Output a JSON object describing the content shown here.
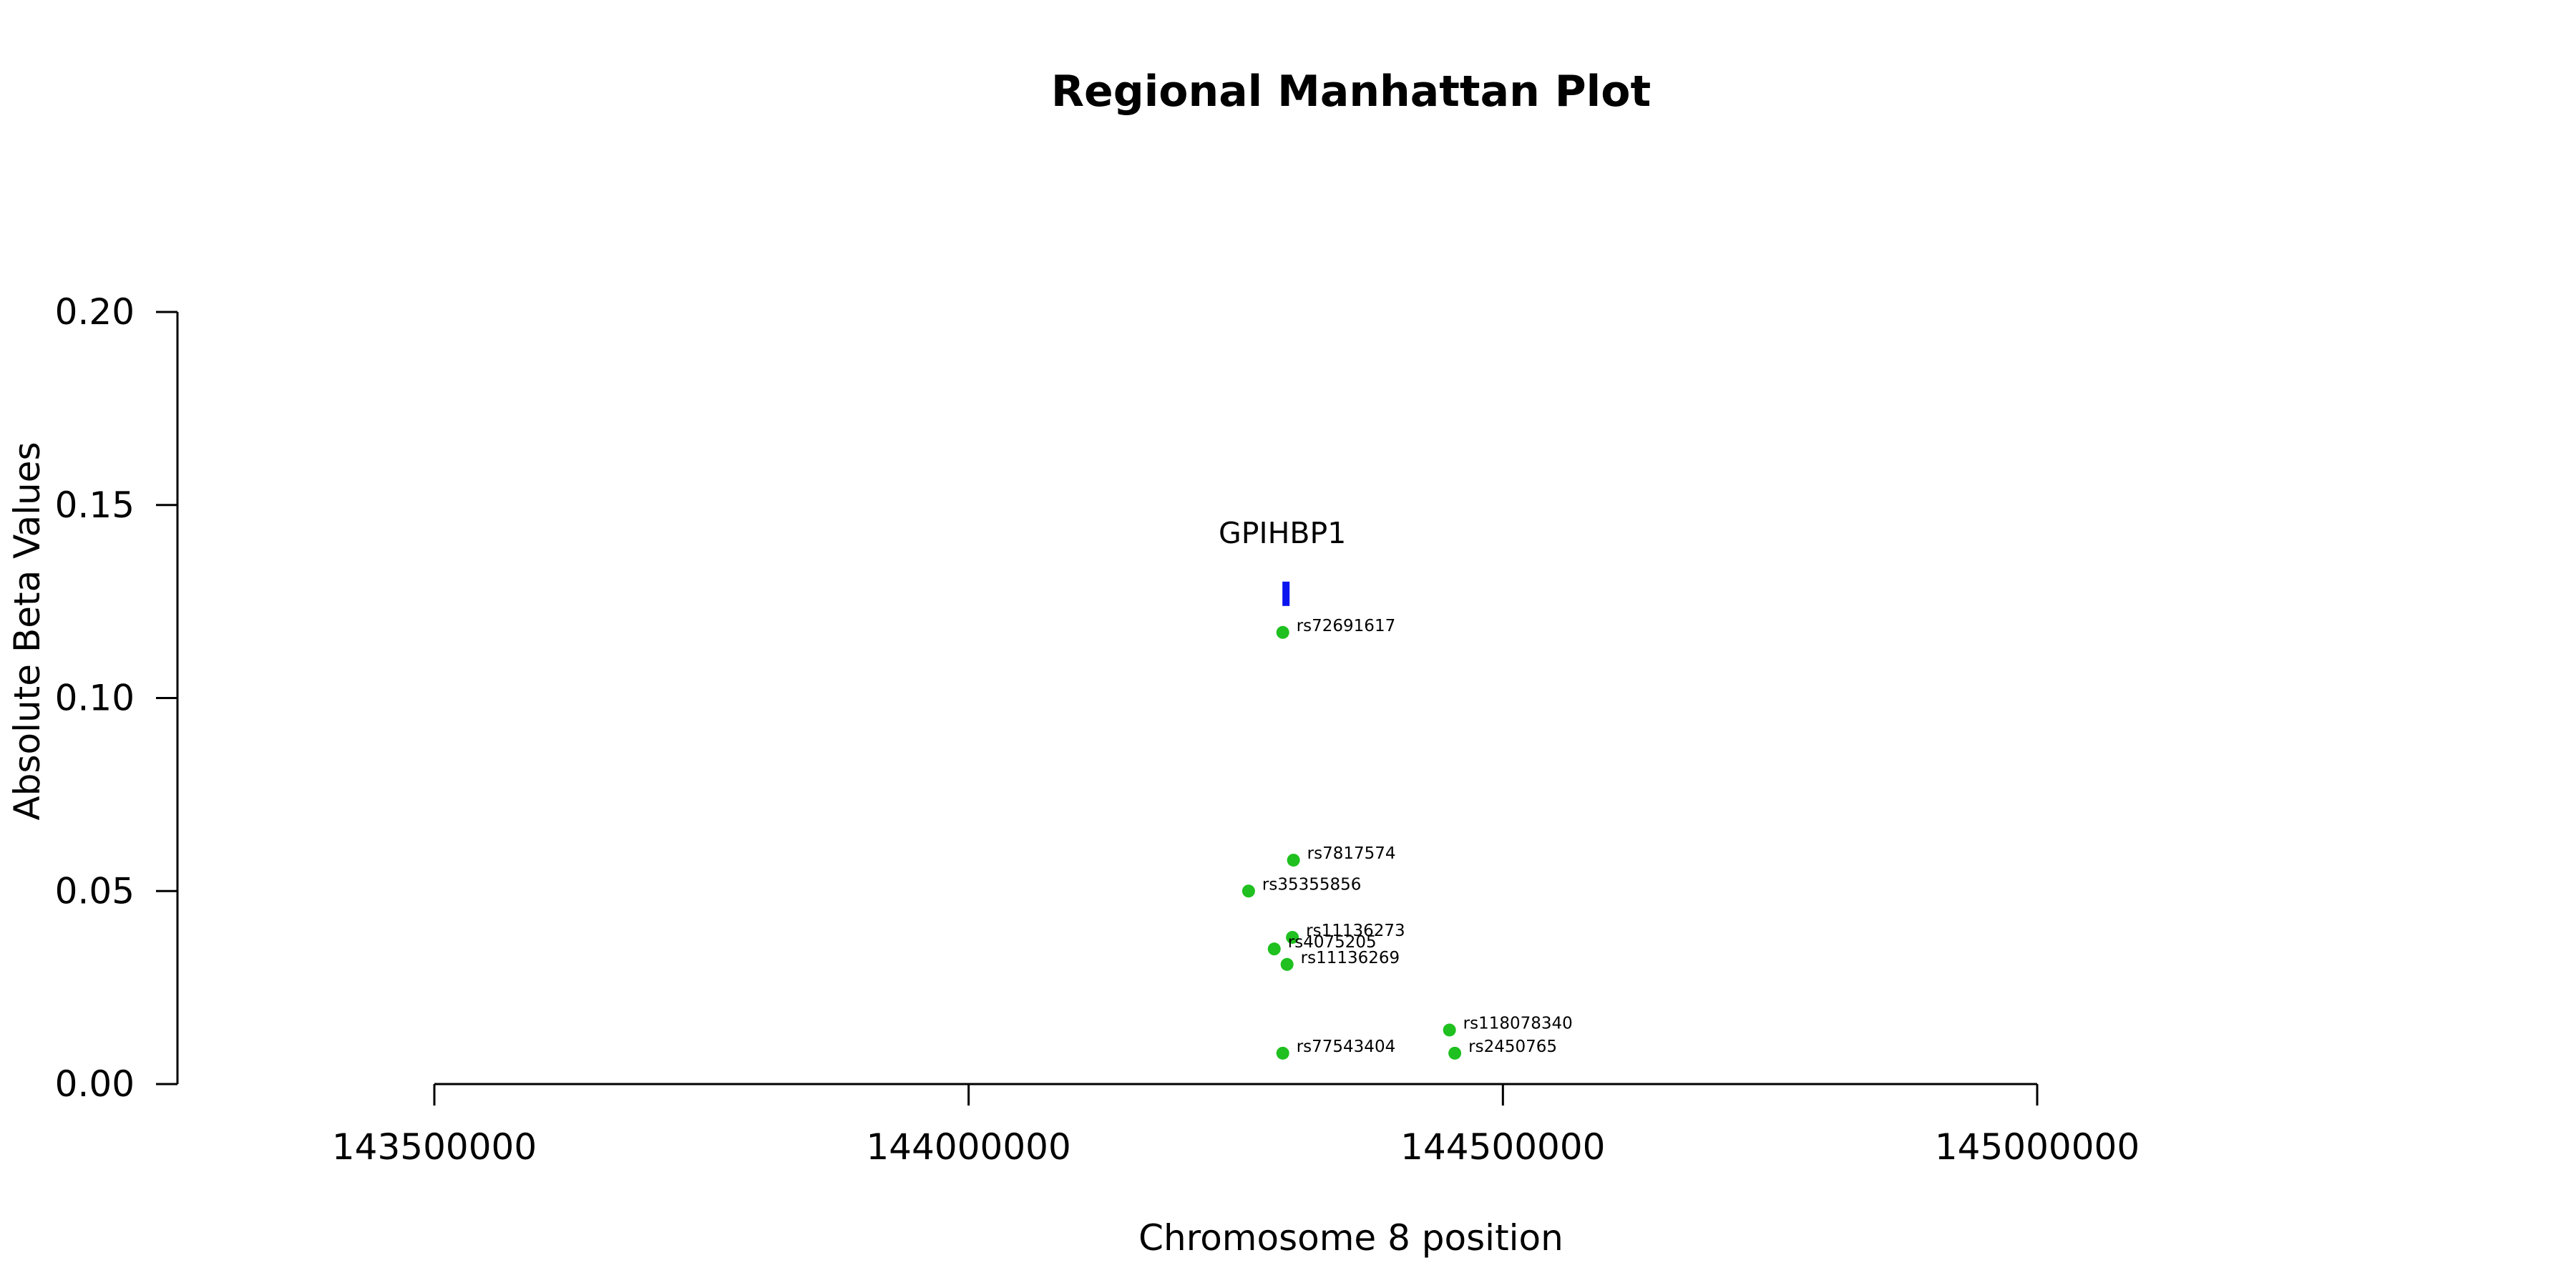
{
  "chart_data": {
    "type": "scatter",
    "title": "Regional Manhattan Plot",
    "xlabel": "Chromosome 8 position",
    "ylabel": "Absolute Beta Values",
    "xlim": [
      143500000,
      145000000
    ],
    "ylim": [
      0,
      0.2
    ],
    "x_ticks": [
      143500000,
      144000000,
      144500000,
      145000000
    ],
    "x_tick_labels": [
      "143500000",
      "144000000",
      "144500000",
      "145000000"
    ],
    "y_ticks": [
      0,
      0.05,
      0.1,
      0.15,
      0.2
    ],
    "y_tick_labels": [
      "0.00",
      "0.05",
      "0.10",
      "0.15",
      "0.20"
    ],
    "grid": false,
    "point_color": "#1fc01f",
    "gene_color": "#0a14f0",
    "points": [
      {
        "label": "rs72691617",
        "x": 144294000,
        "y": 0.117
      },
      {
        "label": "rs7817574",
        "x": 144304000,
        "y": 0.058
      },
      {
        "label": "rs35355856",
        "x": 144262000,
        "y": 0.05
      },
      {
        "label": "rs11136273",
        "x": 144303000,
        "y": 0.038
      },
      {
        "label": "rs4075205",
        "x": 144286000,
        "y": 0.035
      },
      {
        "label": "rs11136269",
        "x": 144298000,
        "y": 0.031
      },
      {
        "label": "rs118078340",
        "x": 144450000,
        "y": 0.014
      },
      {
        "label": "rs2450765",
        "x": 144455000,
        "y": 0.008
      },
      {
        "label": "rs77543404",
        "x": 144294000,
        "y": 0.008
      }
    ],
    "genes": [
      {
        "name": "GPIHBP1",
        "start": 144295000,
        "end": 144299000,
        "y": 0.127
      }
    ]
  }
}
